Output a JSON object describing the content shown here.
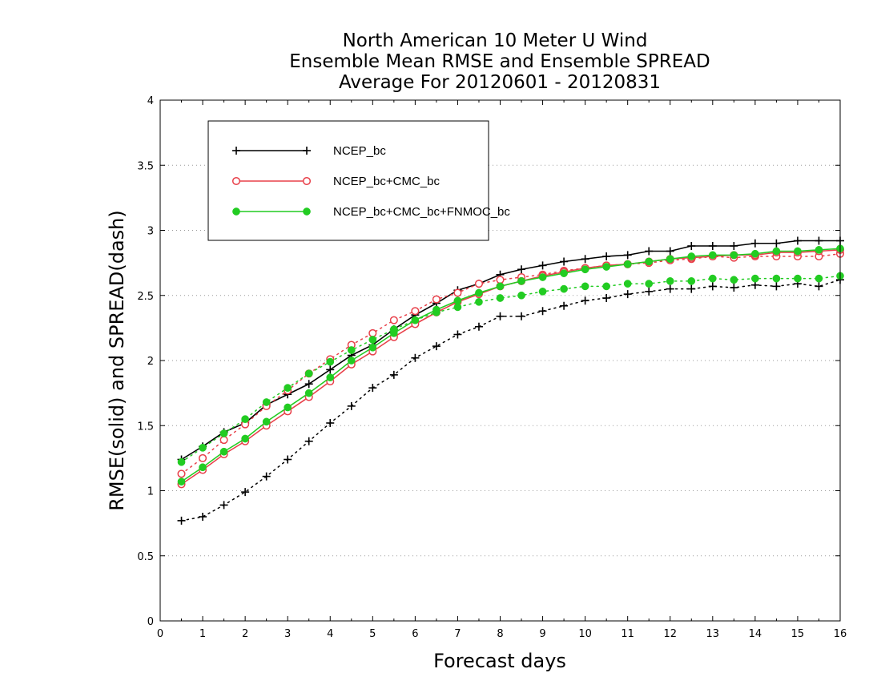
{
  "chart_data": {
    "type": "line",
    "title": [
      "North American 10 Meter U Wind",
      "Ensemble Mean RMSE and Ensemble SPREAD",
      "Average For 20120601 - 20120831"
    ],
    "xlabel": "Forecast days",
    "ylabel": "RMSE(solid) and SPREAD(dash)",
    "xlim": [
      0,
      16
    ],
    "ylim": [
      0,
      4
    ],
    "x_ticks": [
      "0",
      "1",
      "2",
      "3",
      "4",
      "5",
      "6",
      "7",
      "8",
      "9",
      "10",
      "11",
      "12",
      "13",
      "14",
      "15",
      "16"
    ],
    "y_ticks": [
      "0",
      "0.5",
      "1",
      "1.5",
      "2",
      "2.5",
      "3",
      "3.5",
      "4"
    ],
    "grid": "horizontal dotted",
    "legend_position": "top-left",
    "x": [
      0.5,
      1,
      1.5,
      2,
      2.5,
      3,
      3.5,
      4,
      4.5,
      5,
      5.5,
      6,
      6.5,
      7,
      7.5,
      8,
      8.5,
      9,
      9.5,
      10,
      10.5,
      11,
      11.5,
      12,
      12.5,
      13,
      13.5,
      14,
      14.5,
      15,
      15.5,
      16
    ],
    "series": [
      {
        "name": "NCEP_bc",
        "color": "#000000",
        "marker": "plus",
        "rmse": [
          1.24,
          1.34,
          1.45,
          1.52,
          1.66,
          1.74,
          1.82,
          1.93,
          2.04,
          2.12,
          2.24,
          2.35,
          2.44,
          2.54,
          2.59,
          2.66,
          2.7,
          2.73,
          2.76,
          2.78,
          2.8,
          2.81,
          2.84,
          2.84,
          2.88,
          2.88,
          2.88,
          2.9,
          2.9,
          2.92,
          2.92,
          2.92
        ],
        "spread": [
          0.77,
          0.8,
          0.89,
          0.99,
          1.11,
          1.24,
          1.38,
          1.52,
          1.65,
          1.79,
          1.89,
          2.02,
          2.11,
          2.2,
          2.26,
          2.34,
          2.34,
          2.38,
          2.42,
          2.46,
          2.48,
          2.51,
          2.53,
          2.55,
          2.55,
          2.57,
          2.56,
          2.58,
          2.57,
          2.59,
          2.57,
          2.62
        ]
      },
      {
        "name": "NCEP_bc+CMC_bc",
        "color": "#e8404a",
        "marker": "open-circle",
        "rmse": [
          1.05,
          1.16,
          1.28,
          1.38,
          1.5,
          1.61,
          1.72,
          1.84,
          1.97,
          2.07,
          2.18,
          2.28,
          2.37,
          2.45,
          2.51,
          2.57,
          2.61,
          2.65,
          2.68,
          2.71,
          2.73,
          2.74,
          2.76,
          2.78,
          2.79,
          2.8,
          2.81,
          2.81,
          2.83,
          2.83,
          2.84,
          2.85
        ],
        "spread": [
          1.13,
          1.25,
          1.39,
          1.51,
          1.65,
          1.77,
          1.9,
          2.01,
          2.12,
          2.21,
          2.31,
          2.38,
          2.47,
          2.52,
          2.59,
          2.62,
          2.64,
          2.66,
          2.69,
          2.71,
          2.73,
          2.74,
          2.75,
          2.77,
          2.78,
          2.8,
          2.79,
          2.8,
          2.8,
          2.8,
          2.8,
          2.82
        ]
      },
      {
        "name": "NCEP_bc+CMC_bc+FNMOC_bc",
        "color": "#22cc22",
        "marker": "filled-circle",
        "rmse": [
          1.07,
          1.18,
          1.3,
          1.4,
          1.53,
          1.64,
          1.75,
          1.87,
          2.0,
          2.1,
          2.21,
          2.31,
          2.39,
          2.46,
          2.52,
          2.57,
          2.61,
          2.64,
          2.67,
          2.7,
          2.72,
          2.74,
          2.76,
          2.78,
          2.8,
          2.81,
          2.81,
          2.82,
          2.84,
          2.84,
          2.85,
          2.86
        ],
        "spread": [
          1.22,
          1.33,
          1.44,
          1.55,
          1.68,
          1.79,
          1.9,
          1.99,
          2.08,
          2.16,
          2.24,
          2.31,
          2.37,
          2.41,
          2.45,
          2.48,
          2.5,
          2.53,
          2.55,
          2.57,
          2.57,
          2.59,
          2.59,
          2.61,
          2.61,
          2.63,
          2.62,
          2.63,
          2.63,
          2.63,
          2.63,
          2.65
        ]
      }
    ]
  }
}
